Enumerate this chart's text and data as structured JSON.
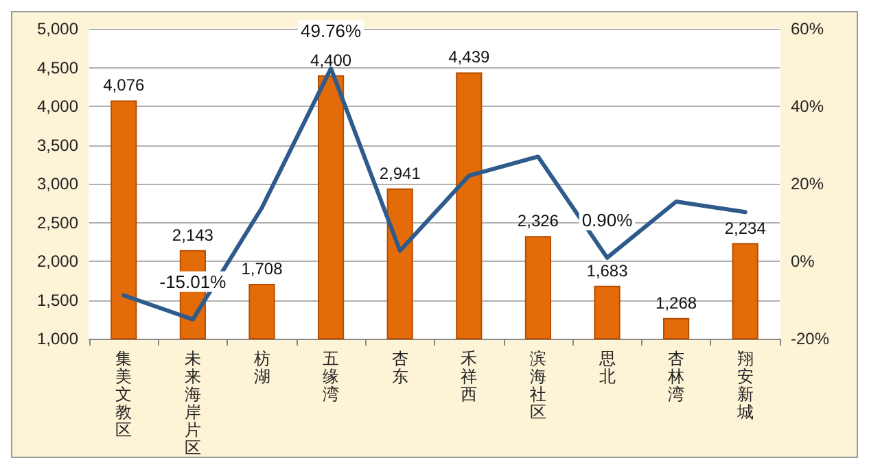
{
  "chart_data": {
    "type": "bar",
    "categories": [
      "集美文教区",
      "未来海岸片区",
      "枋湖",
      "五缘湾",
      "杏东",
      "禾祥西",
      "滨海社区",
      "思北",
      "杏林湾",
      "翔安新城"
    ],
    "series": [
      {
        "color": "#e36c09",
        "values": [
          4076,
          2143,
          1708,
          4400,
          2941,
          4439,
          2326,
          1683,
          1268,
          2234
        ],
        "value_labels": [
          "4,076",
          "2,143",
          "1,708",
          "4,400",
          "2,941",
          "4,439",
          "2,326",
          "1,683",
          "1,268",
          "2,234"
        ]
      },
      {
        "type": "line",
        "axis": "y2",
        "color": "#2e5a8c",
        "values": [
          -8.8,
          -15.01,
          13.8,
          49.76,
          2.7,
          22.1,
          27,
          0.9,
          15.4,
          12.7
        ],
        "value_labels": [
          null,
          "-15.01%",
          null,
          "49.76%",
          null,
          null,
          null,
          "0.90%",
          null,
          null
        ]
      }
    ],
    "ylim": [
      1000,
      5000
    ],
    "yticks": [
      {
        "value": 1000,
        "label": "1,000"
      },
      {
        "value": 1500,
        "label": "1,500"
      },
      {
        "value": 2000,
        "label": "2,000"
      },
      {
        "value": 2500,
        "label": "2,500"
      },
      {
        "value": 3000,
        "label": "3,000"
      },
      {
        "value": 3500,
        "label": "3,500"
      },
      {
        "value": 4000,
        "label": "4,000"
      },
      {
        "value": 4500,
        "label": "4,500"
      },
      {
        "value": 5000,
        "label": "5,000"
      }
    ],
    "y2lim": [
      -20,
      60
    ],
    "y2ticks": [
      {
        "value": -20,
        "label": "-20%"
      },
      {
        "value": 0,
        "label": "0%"
      },
      {
        "value": 20,
        "label": "20%"
      },
      {
        "value": 40,
        "label": "40%"
      },
      {
        "value": 60,
        "label": "60%"
      }
    ],
    "grid": "y",
    "marker": "none",
    "line_style": "solid"
  }
}
